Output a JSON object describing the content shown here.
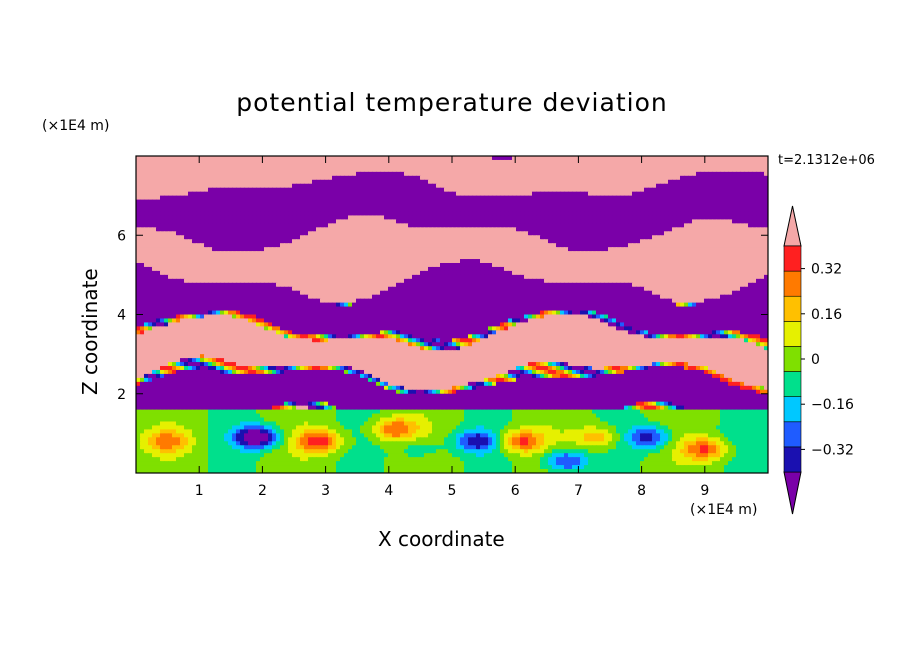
{
  "chart_data": {
    "type": "heatmap",
    "title": "potential temperature deviation",
    "xlabel": "X coordinate",
    "ylabel": "Z coordinate",
    "x_unit": "(×1E4 m)",
    "y_unit": "(×1E4 m)",
    "time_label": "t=2.1312e+06",
    "xlim": [
      0,
      10
    ],
    "ylim": [
      0,
      8
    ],
    "x_ticks": [
      "1",
      "2",
      "3",
      "4",
      "5",
      "6",
      "7",
      "8",
      "9"
    ],
    "y_ticks": [
      "2",
      "4",
      "6"
    ],
    "colorbar": {
      "tick_labels": [
        "0.32",
        "0.16",
        "0",
        "-0.16",
        "-0.32"
      ],
      "levels": [
        -0.4,
        -0.32,
        -0.24,
        -0.16,
        -0.08,
        0,
        0.08,
        0.16,
        0.24,
        0.32,
        0.4
      ],
      "colors": [
        "#7a00a8",
        "#1a10b0",
        "#1f5cff",
        "#00c8ff",
        "#00e08c",
        "#7fe000",
        "#e6f000",
        "#ffc000",
        "#ff7a00",
        "#ff2020",
        "#f5a8a8"
      ],
      "extend": "both"
    },
    "upper_layer_colors": [
      "#7a00a8",
      "#f5a8a8"
    ],
    "grid": false,
    "legend_placement": "right"
  }
}
